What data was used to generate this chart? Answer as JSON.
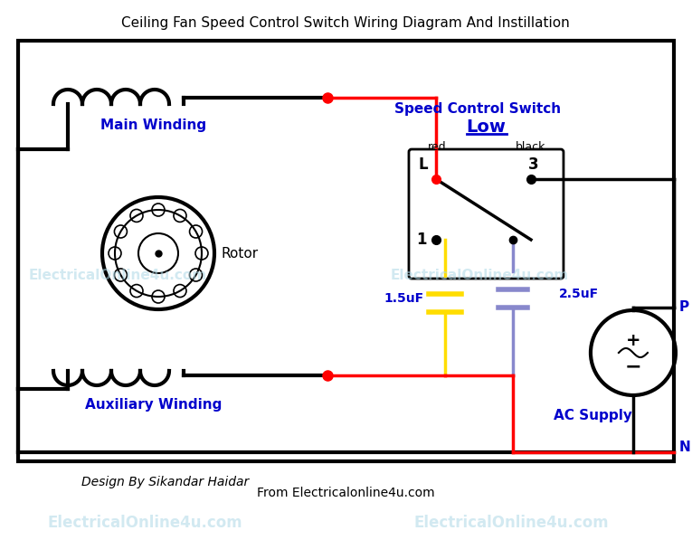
{
  "title": "Ceiling Fan Speed Control Switch Wiring Diagram And Instillation",
  "title_fontsize": 11,
  "bg_color": "#ffffff",
  "border_color": "#000000",
  "wire_red": "#ff0000",
  "wire_black": "#000000",
  "wire_yellow": "#ffdd00",
  "wire_purple": "#8888cc",
  "text_blue": "#0000cc",
  "text_black": "#000000",
  "watermark_color": "#add8e6",
  "label_main_winding": "Main Winding",
  "label_aux_winding": "Auxiliary Winding",
  "label_rotor": "Rotor",
  "label_speed_control": "Speed Control Switch",
  "label_low": "Low",
  "label_red": "red",
  "label_black": "black",
  "label_L": "L",
  "label_3": "3",
  "label_1": "1",
  "label_15uF": "1.5uF",
  "label_25uF": "2.5uF",
  "label_P": "P",
  "label_N": "N",
  "label_ac_supply": "AC Supply",
  "label_design": "Design By Sikandar Haidar",
  "label_from": "From Electricalonline4u.com",
  "label_watermark1": "ElectricalOnline4u.com",
  "label_watermark2": "ElectricalOnline4u.com"
}
